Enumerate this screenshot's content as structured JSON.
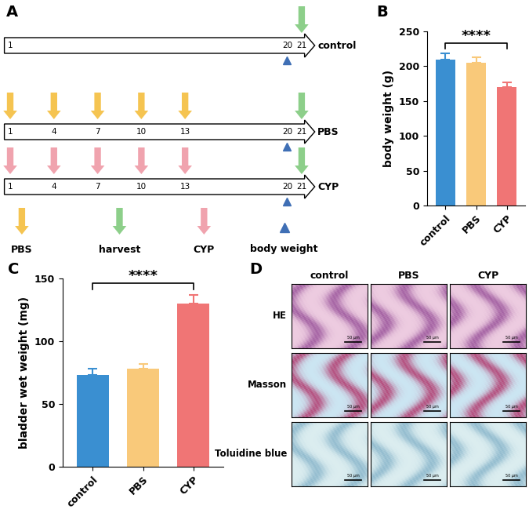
{
  "panel_labels": [
    "A",
    "B",
    "C",
    "D"
  ],
  "timeline": {
    "rows": [
      {
        "label": "control",
        "day_labels": [
          1,
          20,
          21
        ],
        "events": [
          {
            "day": 21,
            "kind": "harvest"
          }
        ]
      },
      {
        "label": "PBS",
        "day_labels": [
          1,
          4,
          7,
          10,
          13,
          20,
          21
        ],
        "events": [
          {
            "day": 1,
            "kind": "PBS"
          },
          {
            "day": 4,
            "kind": "PBS"
          },
          {
            "day": 7,
            "kind": "PBS"
          },
          {
            "day": 10,
            "kind": "PBS"
          },
          {
            "day": 13,
            "kind": "PBS"
          },
          {
            "day": 21,
            "kind": "harvest"
          }
        ]
      },
      {
        "label": "CYP",
        "day_labels": [
          1,
          4,
          7,
          10,
          13,
          20,
          21
        ],
        "events": [
          {
            "day": 1,
            "kind": "CYP"
          },
          {
            "day": 4,
            "kind": "CYP"
          },
          {
            "day": 7,
            "kind": "CYP"
          },
          {
            "day": 10,
            "kind": "CYP"
          },
          {
            "day": 13,
            "kind": "CYP"
          },
          {
            "day": 21,
            "kind": "harvest"
          }
        ]
      }
    ],
    "body_weight_day": 20,
    "legend": [
      {
        "name": "PBS",
        "color": "#f5c451",
        "marker": "arrow"
      },
      {
        "name": "harvest",
        "color": "#8dcf8a",
        "marker": "arrow"
      },
      {
        "name": "CYP",
        "color": "#f0a3ae",
        "marker": "arrow"
      },
      {
        "name": "body weight",
        "color": "#3f6fb5",
        "marker": "triangle"
      }
    ]
  },
  "chart_data": [
    {
      "type": "bar",
      "categories": [
        "control",
        "PBS",
        "CYP"
      ],
      "values": [
        209,
        205,
        170
      ],
      "errors": [
        9,
        8,
        7
      ],
      "colors": [
        "#3a8fd1",
        "#f9c97a",
        "#f07575"
      ],
      "ylabel": "body weight (g)",
      "ylim": [
        0,
        250
      ],
      "yticks": [
        0,
        50,
        100,
        150,
        200,
        250
      ],
      "annotations": [
        {
          "text": "****",
          "from": "control",
          "to": "CYP"
        }
      ]
    },
    {
      "type": "bar",
      "categories": [
        "control",
        "PBS",
        "CYP"
      ],
      "values": [
        73,
        78,
        130
      ],
      "errors": [
        5,
        4,
        7
      ],
      "colors": [
        "#3a8fd1",
        "#f9c97a",
        "#f07575"
      ],
      "ylabel": "bladder wet weight (mg)",
      "ylim": [
        0,
        150
      ],
      "yticks": [
        0,
        50,
        100,
        150
      ],
      "annotations": [
        {
          "text": "****",
          "from": "control",
          "to": "CYP"
        }
      ]
    }
  ],
  "histology": {
    "columns": [
      "control",
      "PBS",
      "CYP"
    ],
    "rows": [
      "HE",
      "Masson",
      "Toluidine blue"
    ],
    "scale_bar": "50 μm"
  }
}
